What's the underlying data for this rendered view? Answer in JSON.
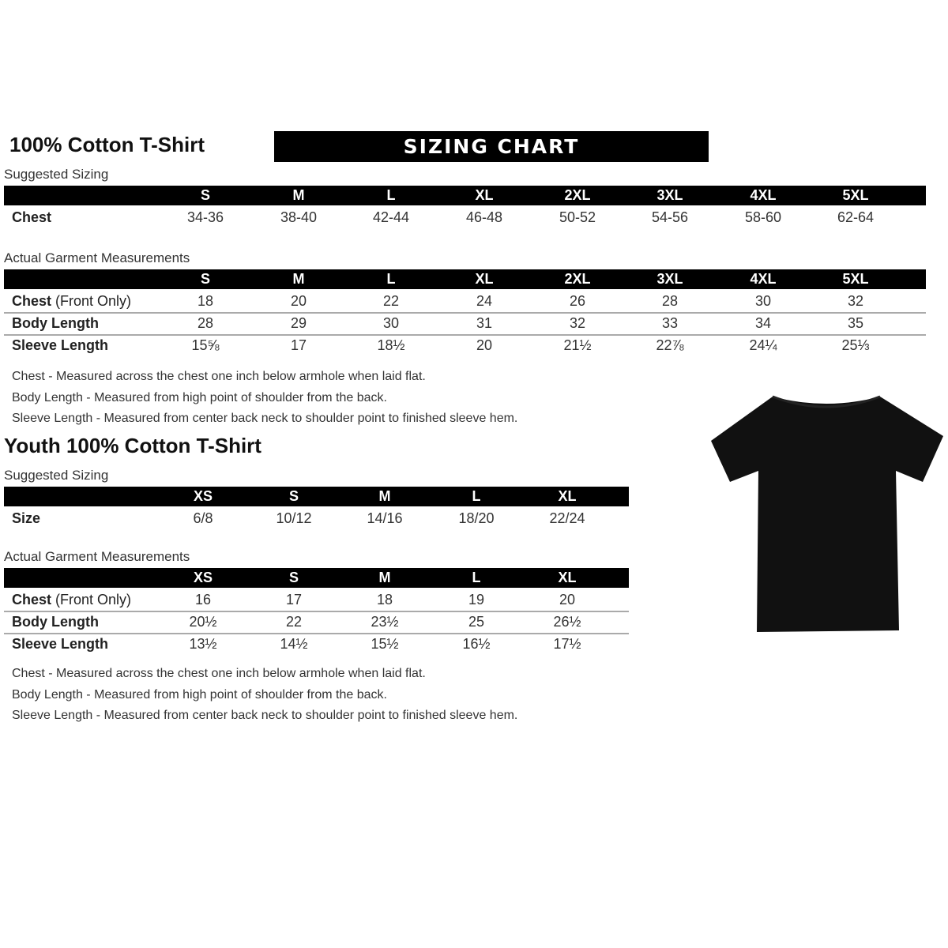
{
  "adult": {
    "title": "100% Cotton T-Shirt",
    "banner": "SIZING CHART",
    "suggested_label": "Suggested Sizing",
    "sizes": [
      "S",
      "M",
      "L",
      "XL",
      "2XL",
      "3XL",
      "4XL",
      "5XL"
    ],
    "suggested_rows": [
      {
        "label": "Chest",
        "values": [
          "34-36",
          "38-40",
          "42-44",
          "46-48",
          "50-52",
          "54-56",
          "58-60",
          "62-64"
        ]
      }
    ],
    "actual_label": "Actual Garment Measurements",
    "actual_rows": [
      {
        "label": "Chest",
        "label_suffix": " (Front Only)",
        "values": [
          "18",
          "20",
          "22",
          "24",
          "26",
          "28",
          "30",
          "32"
        ]
      },
      {
        "label": "Body Length",
        "values": [
          "28",
          "29",
          "30",
          "31",
          "32",
          "33",
          "34",
          "35"
        ]
      },
      {
        "label": "Sleeve Length",
        "values": [
          "15⅝",
          "17",
          "18½",
          "20",
          "21½",
          "22⅞",
          "24¼",
          "25⅓"
        ]
      }
    ],
    "notes": [
      "Chest - Measured across the chest one inch below armhole when laid flat.",
      "Body Length - Measured from high point of shoulder from the back.",
      "Sleeve Length - Measured from center back neck to shoulder point to finished sleeve hem."
    ]
  },
  "youth": {
    "title": "Youth 100% Cotton T-Shirt",
    "suggested_label": "Suggested Sizing",
    "sizes": [
      "XS",
      "S",
      "M",
      "L",
      "XL"
    ],
    "suggested_rows": [
      {
        "label": "Size",
        "values": [
          "6/8",
          "10/12",
          "14/16",
          "18/20",
          "22/24"
        ]
      }
    ],
    "actual_label": "Actual Garment Measurements",
    "actual_rows": [
      {
        "label": "Chest",
        "label_suffix": " (Front Only)",
        "values": [
          "16",
          "17",
          "18",
          "19",
          "20"
        ]
      },
      {
        "label": "Body Length",
        "values": [
          "20½",
          "22",
          "23½",
          "25",
          "26½"
        ]
      },
      {
        "label": "Sleeve Length",
        "values": [
          "13½",
          "14½",
          "15½",
          "16½",
          "17½"
        ]
      }
    ],
    "notes": [
      "Chest - Measured across the chest one inch below armhole when laid flat.",
      "Body Length - Measured from high point of shoulder from the back.",
      "Sleeve Length - Measured from center back neck to shoulder point to finished sleeve hem."
    ]
  },
  "image": {
    "icon": "tshirt-icon",
    "color": "#111111"
  }
}
